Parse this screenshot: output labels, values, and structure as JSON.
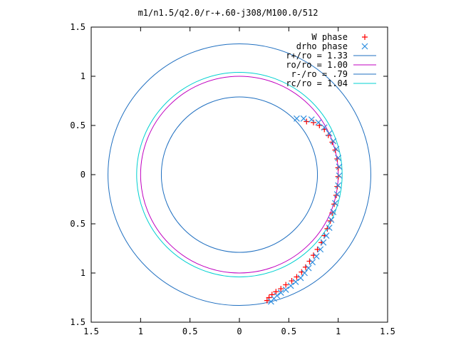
{
  "chart_data": {
    "type": "scatter",
    "title": "m1/n1.5/q2.0/r-+.60-j308/M100.0/512",
    "xlabel": "",
    "ylabel": "",
    "xlim": [
      -1.5,
      1.5
    ],
    "ylim": [
      -1.5,
      1.5
    ],
    "x_ticks": [
      -1.5,
      -1,
      -0.5,
      0,
      0.5,
      1,
      1.5
    ],
    "y_ticks": [
      -1.5,
      -1,
      -0.5,
      0,
      0.5,
      1,
      1.5
    ],
    "x_tick_labels": [
      "1.5",
      "1",
      "0.5",
      "0",
      "0.5",
      "1",
      "1.5"
    ],
    "y_tick_labels": [
      "1.5",
      "1",
      "0.5",
      "0",
      "0.5",
      "1",
      "1.5"
    ],
    "grid": false,
    "legend_position": "top-right",
    "colors": {
      "w_phase": "#ff0000",
      "drho_phase": "#2f8fe0",
      "r_plus": "#1f6fc0",
      "ro": "#c000c0",
      "r_minus": "#1f6fc0",
      "rc": "#00d0d0"
    },
    "series": [
      {
        "name": "W phase",
        "kind": "points",
        "marker": "+",
        "color": "#ff0000",
        "points": [
          [
            0.28,
            -1.28
          ],
          [
            0.3,
            -1.25
          ],
          [
            0.33,
            -1.22
          ],
          [
            0.37,
            -1.19
          ],
          [
            0.42,
            -1.16
          ],
          [
            0.47,
            -1.12
          ],
          [
            0.53,
            -1.08
          ],
          [
            0.58,
            -1.04
          ],
          [
            0.63,
            -0.99
          ],
          [
            0.67,
            -0.94
          ],
          [
            0.71,
            -0.88
          ],
          [
            0.75,
            -0.82
          ],
          [
            0.79,
            -0.76
          ],
          [
            0.83,
            -0.69
          ],
          [
            0.86,
            -0.62
          ],
          [
            0.89,
            -0.55
          ],
          [
            0.92,
            -0.47
          ],
          [
            0.94,
            -0.39
          ],
          [
            0.96,
            -0.3
          ],
          [
            0.98,
            -0.21
          ],
          [
            0.99,
            -0.12
          ],
          [
            1.0,
            -0.02
          ],
          [
            1.0,
            0.07
          ],
          [
            0.99,
            0.16
          ],
          [
            0.97,
            0.25
          ],
          [
            0.94,
            0.33
          ],
          [
            0.9,
            0.4
          ],
          [
            0.86,
            0.46
          ],
          [
            0.81,
            0.5
          ],
          [
            0.75,
            0.53
          ],
          [
            0.68,
            0.54
          ]
        ]
      },
      {
        "name": "drho phase",
        "kind": "points",
        "marker": "x",
        "color": "#2f8fe0",
        "points": [
          [
            0.32,
            -1.29
          ],
          [
            0.35,
            -1.26
          ],
          [
            0.38,
            -1.23
          ],
          [
            0.42,
            -1.2
          ],
          [
            0.47,
            -1.17
          ],
          [
            0.52,
            -1.13
          ],
          [
            0.57,
            -1.09
          ],
          [
            0.62,
            -1.05
          ],
          [
            0.66,
            -1.0
          ],
          [
            0.7,
            -0.95
          ],
          [
            0.74,
            -0.89
          ],
          [
            0.78,
            -0.83
          ],
          [
            0.82,
            -0.76
          ],
          [
            0.85,
            -0.69
          ],
          [
            0.88,
            -0.62
          ],
          [
            0.91,
            -0.54
          ],
          [
            0.93,
            -0.46
          ],
          [
            0.95,
            -0.38
          ],
          [
            0.97,
            -0.29
          ],
          [
            0.99,
            -0.2
          ],
          [
            1.0,
            -0.11
          ],
          [
            1.01,
            -0.01
          ],
          [
            1.01,
            0.08
          ],
          [
            1.0,
            0.17
          ],
          [
            0.98,
            0.26
          ],
          [
            0.95,
            0.34
          ],
          [
            0.91,
            0.42
          ],
          [
            0.86,
            0.48
          ],
          [
            0.8,
            0.53
          ],
          [
            0.73,
            0.56
          ],
          [
            0.65,
            0.57
          ],
          [
            0.58,
            0.57
          ]
        ]
      },
      {
        "name": "r+/ro = 1.33",
        "kind": "circle",
        "radius": 1.33,
        "color": "#1f6fc0"
      },
      {
        "name": "ro/ro = 1.00",
        "kind": "circle",
        "radius": 1.0,
        "color": "#c000c0"
      },
      {
        "name": "r-/ro = .79",
        "kind": "circle",
        "radius": 0.79,
        "color": "#1f6fc0"
      },
      {
        "name": "rc/ro = 1.04",
        "kind": "circle",
        "radius": 1.04,
        "color": "#00d0d0"
      }
    ]
  }
}
